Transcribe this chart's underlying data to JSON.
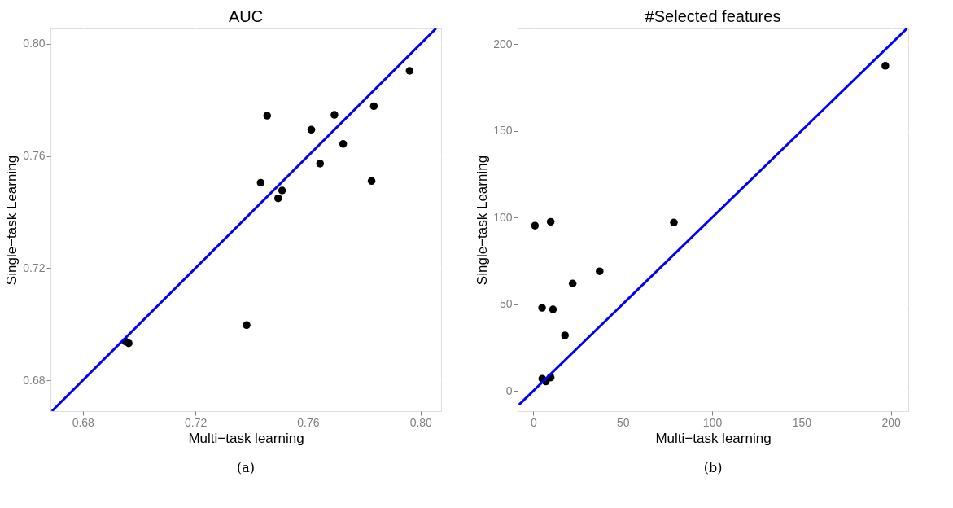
{
  "chart_data": [
    {
      "type": "scatter",
      "title": "AUC",
      "xlabel": "Multi−task learning",
      "ylabel": "Single−task Learning",
      "annotations": [
        "(a)"
      ],
      "xlim": [
        0.6685,
        0.8073
      ],
      "ylim": [
        0.669,
        0.8055
      ],
      "xticks": [
        0.68,
        0.72,
        0.76,
        {
          "value": 0.8,
          "label": "0.80"
        }
      ],
      "yticks": [
        0.68,
        0.72,
        0.76,
        {
          "value": 0.8,
          "label": "0.80"
        }
      ],
      "grid": true,
      "series": [
        {
          "color": "#000000",
          "marker": "circle",
          "x": [
            0.6952,
            0.6963,
            0.7382,
            0.7432,
            0.7455,
            0.7494,
            0.7508,
            0.7612,
            0.7643,
            0.7694,
            0.7725,
            0.7826,
            0.7834,
            0.7961
          ],
          "values": [
            0.6938,
            0.6932,
            0.6997,
            0.7505,
            0.7744,
            0.7449,
            0.7477,
            0.7694,
            0.7573,
            0.7747,
            0.7643,
            0.7511,
            0.7778,
            0.7904
          ]
        },
        {
          "type": "line",
          "color": "#0000ff",
          "line_style": "solid",
          "x": [
            0.669,
            0.8055
          ],
          "values": [
            0.669,
            0.8055
          ]
        }
      ]
    },
    {
      "type": "scatter",
      "title": "#Selected features",
      "xlabel": "Multi−task learning",
      "ylabel": "Single−task Learning",
      "annotations": [
        "(b)"
      ],
      "xlim": [
        -8.8,
        209.7
      ],
      "ylim": [
        -11.7,
        209
      ],
      "xticks": [
        0,
        50,
        100,
        150,
        200
      ],
      "yticks": [
        0,
        50,
        100,
        150,
        200
      ],
      "grid": true,
      "series": [
        {
          "color": "#000000",
          "marker": "circle",
          "x": [
            0.9,
            9.7,
            78.6,
            37.1,
            22,
            4.9,
            11,
            17.7,
            5,
            7,
            9.7,
            196.9
          ],
          "values": [
            95.3,
            97.5,
            97.1,
            69,
            61.9,
            47.9,
            47,
            32,
            7,
            5.4,
            7.7,
            187.5
          ]
        },
        {
          "type": "line",
          "color": "#0000ff",
          "line_style": "solid",
          "x": [
            -8,
            209
          ],
          "values": [
            -8,
            209
          ]
        }
      ]
    }
  ]
}
